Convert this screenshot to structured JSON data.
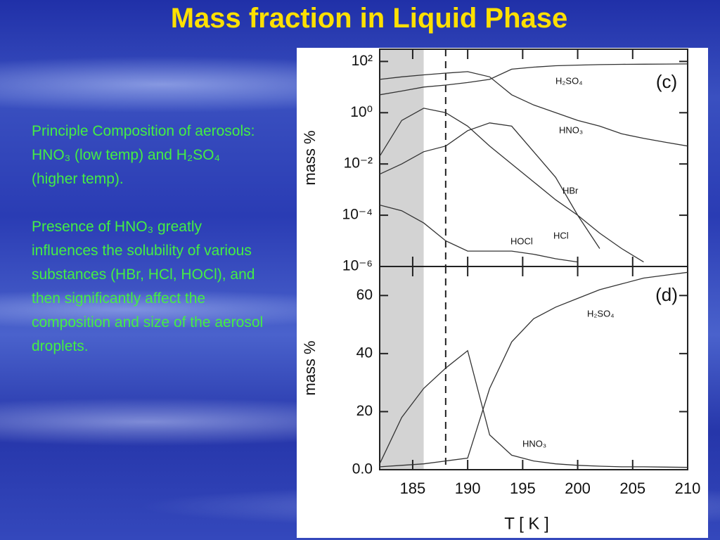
{
  "title": "Mass fraction in Liquid Phase",
  "paragraphs": [
    "Principle Composition of aerosols: HNO₃ (low temp) and H₂SO₄ (higher temp).",
    "Presence of HNO₃ greatly influences the solubility of various substances (HBr, HCl, HOCl), and then significantly affect the composition and size of the aerosol droplets."
  ],
  "chart_data": [
    {
      "type": "line",
      "panel_label": "(c)",
      "y_label": "mass %",
      "log_y": true,
      "x": [
        182,
        184,
        186,
        188,
        190,
        192,
        194,
        196,
        198,
        200,
        202,
        204,
        206,
        208,
        210
      ],
      "xlim": [
        182,
        210
      ],
      "xticks": [
        185,
        190,
        195,
        200,
        205,
        210
      ],
      "ylim": [
        1e-06,
        300
      ],
      "yticks": [
        {
          "value": 1e-06,
          "label": "10⁻⁶"
        },
        {
          "value": 0.0001,
          "label": "10⁻⁴"
        },
        {
          "value": 0.01,
          "label": "10⁻²"
        },
        {
          "value": 1,
          "label": "10⁰"
        },
        {
          "value": 100,
          "label": "10²"
        }
      ],
      "shaded_x": [
        182,
        186
      ],
      "dashed_x": 188,
      "color": "#333333",
      "series": [
        {
          "name": "H₂SO₄",
          "values": [
            5,
            7,
            10,
            12,
            15,
            20,
            50,
            60,
            68,
            72,
            75,
            77,
            78,
            79,
            80
          ]
        },
        {
          "name": "HNO₃",
          "values": [
            20,
            25,
            30,
            35,
            40,
            25,
            5,
            2,
            1,
            0.5,
            0.3,
            0.15,
            0.1,
            0.07,
            0.05
          ]
        },
        {
          "name": "HBr",
          "values": [
            0.02,
            0.5,
            1.5,
            1,
            0.3,
            0.05,
            0.01,
            0.002,
            0.0004,
            0.0001,
            2e-05,
            5e-06,
            1.5e-06,
            null,
            null
          ]
        },
        {
          "name": "HCl",
          "values": [
            0.004,
            0.01,
            0.03,
            0.05,
            0.2,
            0.4,
            0.3,
            0.03,
            0.003,
            0.0001,
            5e-06,
            null,
            null,
            null,
            null
          ]
        },
        {
          "name": "HOCl",
          "values": [
            0.00025,
            0.00015,
            5e-05,
            1e-05,
            4e-06,
            4e-06,
            4e-06,
            3e-06,
            2e-06,
            1.5e-06,
            null,
            null,
            null,
            null,
            null
          ]
        }
      ]
    },
    {
      "type": "line",
      "panel_label": "(d)",
      "y_label": "mass %",
      "x_label": "T [ K ]",
      "log_y": false,
      "x": [
        182,
        184,
        186,
        188,
        190,
        192,
        194,
        196,
        198,
        200,
        202,
        204,
        206,
        208,
        210
      ],
      "xlim": [
        182,
        210
      ],
      "xticks": [
        185,
        190,
        195,
        200,
        205,
        210
      ],
      "ylim": [
        0,
        70
      ],
      "yticks": [
        {
          "value": 0,
          "label": "0.0"
        },
        20,
        40,
        60
      ],
      "shaded_x": [
        182,
        186
      ],
      "dashed_x": 188,
      "color": "#333333",
      "series": [
        {
          "name": "H₂SO₄",
          "values": [
            1,
            1.5,
            2,
            3,
            4,
            28,
            44,
            52,
            56,
            59,
            62,
            64,
            66,
            67,
            68
          ]
        },
        {
          "name": "HNO₃",
          "values": [
            2,
            18,
            28,
            35,
            41,
            12,
            5,
            3,
            2,
            1.5,
            1.2,
            1,
            1,
            0.9,
            0.8
          ]
        }
      ]
    }
  ]
}
